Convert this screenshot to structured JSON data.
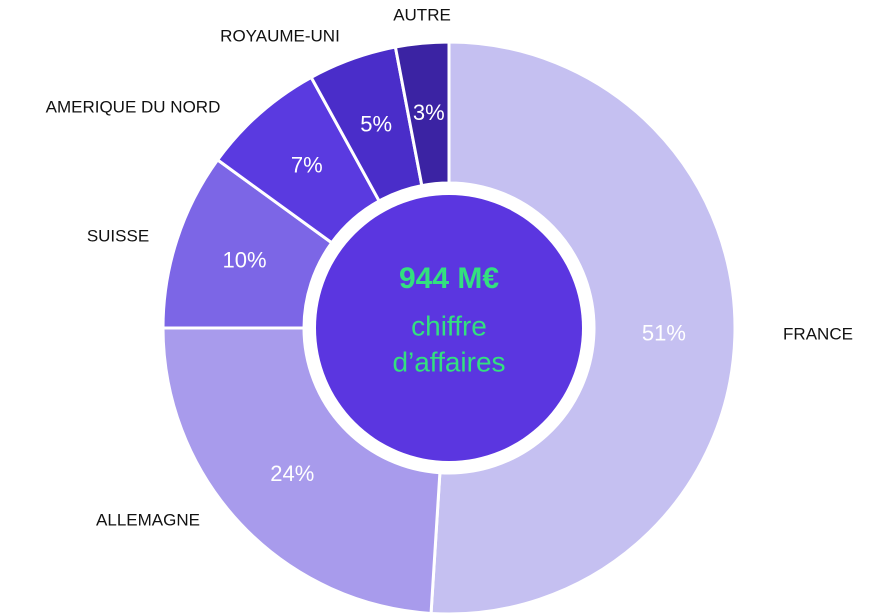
{
  "chart_data": {
    "type": "donut",
    "categories": [
      "FRANCE",
      "ALLEMAGNE",
      "SUISSE",
      "AMERIQUE DU NORD",
      "ROYAUME-UNI",
      "AUTRE"
    ],
    "values": [
      51,
      24,
      10,
      7,
      5,
      3
    ],
    "value_labels": [
      "51%",
      "24%",
      "10%",
      "7%",
      "5%",
      "3%"
    ],
    "colors": [
      "#c5c0f1",
      "#a89bec",
      "#7c66e6",
      "#5a3ae0",
      "#4a2dc9",
      "#3b23a3"
    ],
    "center_value": "944 M€",
    "center_text": [
      "chiffre",
      "d’affaires"
    ]
  }
}
